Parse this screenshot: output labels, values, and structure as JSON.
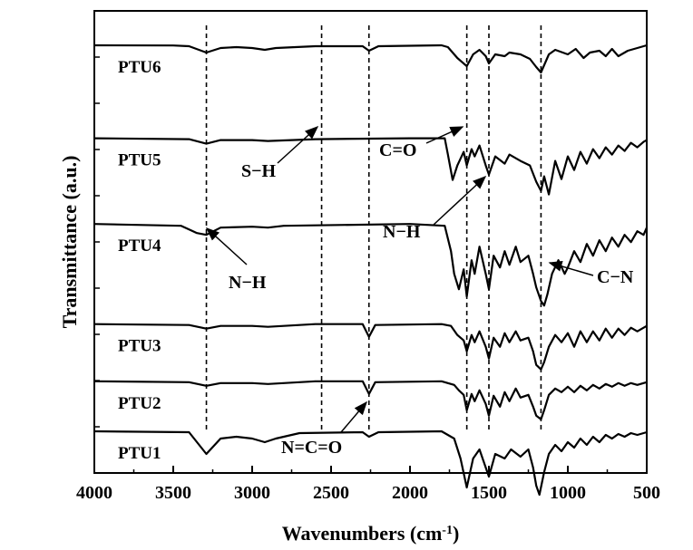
{
  "chart_data": {
    "type": "line",
    "title": "",
    "xlabel": "Wavenumbers (cm",
    "xlabel_sup": "-1",
    "xlabel_close": ")",
    "ylabel": "Transmittance (a.u.)",
    "xlim": [
      4000,
      500
    ],
    "x_reversed": true,
    "xticks": [
      4000,
      3500,
      3000,
      2500,
      2000,
      1500,
      1000,
      500
    ],
    "y_tick_labels_shown": false,
    "grid": false,
    "reference_lines_cm": [
      3290,
      2560,
      2260,
      1640,
      1500,
      1170
    ],
    "series": [
      {
        "name": "PTU6",
        "baseline": 7,
        "points": [
          [
            4000,
            0
          ],
          [
            3500,
            -0.2
          ],
          [
            3400,
            -1
          ],
          [
            3290,
            -8
          ],
          [
            3200,
            -3
          ],
          [
            3100,
            -2
          ],
          [
            3000,
            -3
          ],
          [
            2920,
            -5
          ],
          [
            2850,
            -3
          ],
          [
            2600,
            -1
          ],
          [
            2300,
            -1
          ],
          [
            2260,
            -6
          ],
          [
            2200,
            -1
          ],
          [
            1800,
            0
          ],
          [
            1760,
            -2
          ],
          [
            1700,
            -14
          ],
          [
            1640,
            -23
          ],
          [
            1600,
            -10
          ],
          [
            1560,
            -5
          ],
          [
            1520,
            -12
          ],
          [
            1500,
            -20
          ],
          [
            1460,
            -10
          ],
          [
            1400,
            -12
          ],
          [
            1370,
            -8
          ],
          [
            1300,
            -10
          ],
          [
            1240,
            -15
          ],
          [
            1200,
            -24
          ],
          [
            1170,
            -30
          ],
          [
            1120,
            -10
          ],
          [
            1080,
            -5
          ],
          [
            1000,
            -10
          ],
          [
            950,
            -4
          ],
          [
            900,
            -14
          ],
          [
            860,
            -8
          ],
          [
            800,
            -6
          ],
          [
            760,
            -12
          ],
          [
            720,
            -4
          ],
          [
            680,
            -12
          ],
          [
            620,
            -6
          ],
          [
            560,
            -3
          ],
          [
            500,
            0
          ]
        ]
      },
      {
        "name": "PTU5",
        "baseline": 5.7,
        "points": [
          [
            4000,
            0
          ],
          [
            3400,
            -1
          ],
          [
            3290,
            -6
          ],
          [
            3200,
            -2
          ],
          [
            3000,
            -2
          ],
          [
            2900,
            -3
          ],
          [
            2600,
            -1
          ],
          [
            2000,
            0
          ],
          [
            1780,
            0
          ],
          [
            1760,
            -18
          ],
          [
            1730,
            -46
          ],
          [
            1700,
            -30
          ],
          [
            1660,
            -15
          ],
          [
            1640,
            -30
          ],
          [
            1610,
            -12
          ],
          [
            1590,
            -20
          ],
          [
            1560,
            -8
          ],
          [
            1520,
            -30
          ],
          [
            1500,
            -40
          ],
          [
            1460,
            -20
          ],
          [
            1400,
            -28
          ],
          [
            1370,
            -18
          ],
          [
            1300,
            -25
          ],
          [
            1240,
            -30
          ],
          [
            1200,
            -48
          ],
          [
            1170,
            -58
          ],
          [
            1150,
            -42
          ],
          [
            1120,
            -62
          ],
          [
            1080,
            -25
          ],
          [
            1040,
            -45
          ],
          [
            1000,
            -20
          ],
          [
            960,
            -35
          ],
          [
            920,
            -15
          ],
          [
            880,
            -28
          ],
          [
            840,
            -12
          ],
          [
            800,
            -22
          ],
          [
            760,
            -10
          ],
          [
            720,
            -18
          ],
          [
            680,
            -8
          ],
          [
            640,
            -14
          ],
          [
            600,
            -5
          ],
          [
            560,
            -10
          ],
          [
            520,
            -4
          ],
          [
            500,
            -2
          ]
        ]
      },
      {
        "name": "PTU4",
        "baseline": 4.5,
        "points": [
          [
            4000,
            0
          ],
          [
            3450,
            -2
          ],
          [
            3350,
            -10
          ],
          [
            3290,
            -12
          ],
          [
            3200,
            -4
          ],
          [
            3000,
            -3
          ],
          [
            2900,
            -4
          ],
          [
            2800,
            -2
          ],
          [
            2000,
            0
          ],
          [
            1780,
            -2
          ],
          [
            1740,
            -30
          ],
          [
            1720,
            -55
          ],
          [
            1690,
            -72
          ],
          [
            1660,
            -50
          ],
          [
            1640,
            -80
          ],
          [
            1610,
            -40
          ],
          [
            1590,
            -55
          ],
          [
            1560,
            -25
          ],
          [
            1520,
            -55
          ],
          [
            1500,
            -72
          ],
          [
            1470,
            -35
          ],
          [
            1430,
            -48
          ],
          [
            1400,
            -30
          ],
          [
            1370,
            -45
          ],
          [
            1330,
            -25
          ],
          [
            1300,
            -42
          ],
          [
            1250,
            -35
          ],
          [
            1220,
            -55
          ],
          [
            1200,
            -70
          ],
          [
            1170,
            -85
          ],
          [
            1150,
            -90
          ],
          [
            1130,
            -78
          ],
          [
            1100,
            -55
          ],
          [
            1060,
            -40
          ],
          [
            1020,
            -55
          ],
          [
            1000,
            -48
          ],
          [
            960,
            -30
          ],
          [
            920,
            -42
          ],
          [
            880,
            -22
          ],
          [
            840,
            -35
          ],
          [
            800,
            -18
          ],
          [
            760,
            -30
          ],
          [
            720,
            -15
          ],
          [
            680,
            -25
          ],
          [
            640,
            -12
          ],
          [
            600,
            -20
          ],
          [
            560,
            -8
          ],
          [
            520,
            -12
          ],
          [
            500,
            -4
          ]
        ]
      },
      {
        "name": "PTU3",
        "baseline": 3.1,
        "points": [
          [
            4000,
            0
          ],
          [
            3400,
            -1
          ],
          [
            3290,
            -5
          ],
          [
            3200,
            -2
          ],
          [
            3000,
            -2
          ],
          [
            2900,
            -3
          ],
          [
            2600,
            0
          ],
          [
            2300,
            0
          ],
          [
            2260,
            -14
          ],
          [
            2220,
            -1
          ],
          [
            1800,
            0
          ],
          [
            1740,
            -2
          ],
          [
            1700,
            -12
          ],
          [
            1660,
            -18
          ],
          [
            1640,
            -30
          ],
          [
            1610,
            -12
          ],
          [
            1590,
            -20
          ],
          [
            1560,
            -8
          ],
          [
            1520,
            -25
          ],
          [
            1500,
            -38
          ],
          [
            1470,
            -15
          ],
          [
            1430,
            -25
          ],
          [
            1400,
            -10
          ],
          [
            1370,
            -20
          ],
          [
            1330,
            -8
          ],
          [
            1300,
            -18
          ],
          [
            1250,
            -15
          ],
          [
            1220,
            -30
          ],
          [
            1200,
            -45
          ],
          [
            1170,
            -50
          ],
          [
            1150,
            -42
          ],
          [
            1120,
            -25
          ],
          [
            1080,
            -12
          ],
          [
            1040,
            -20
          ],
          [
            1000,
            -10
          ],
          [
            960,
            -25
          ],
          [
            920,
            -8
          ],
          [
            880,
            -20
          ],
          [
            840,
            -8
          ],
          [
            800,
            -18
          ],
          [
            760,
            -5
          ],
          [
            720,
            -15
          ],
          [
            680,
            -5
          ],
          [
            640,
            -12
          ],
          [
            600,
            -4
          ],
          [
            560,
            -8
          ],
          [
            500,
            -2
          ]
        ]
      },
      {
        "name": "PTU2",
        "baseline": 2.3,
        "points": [
          [
            4000,
            0
          ],
          [
            3400,
            -1
          ],
          [
            3290,
            -5
          ],
          [
            3200,
            -2
          ],
          [
            3000,
            -2
          ],
          [
            2900,
            -3
          ],
          [
            2600,
            0
          ],
          [
            2300,
            0
          ],
          [
            2260,
            -14
          ],
          [
            2220,
            -1
          ],
          [
            1800,
            0
          ],
          [
            1720,
            -4
          ],
          [
            1690,
            -10
          ],
          [
            1660,
            -15
          ],
          [
            1640,
            -32
          ],
          [
            1610,
            -14
          ],
          [
            1590,
            -22
          ],
          [
            1560,
            -10
          ],
          [
            1520,
            -25
          ],
          [
            1500,
            -38
          ],
          [
            1470,
            -16
          ],
          [
            1430,
            -28
          ],
          [
            1400,
            -12
          ],
          [
            1370,
            -22
          ],
          [
            1330,
            -8
          ],
          [
            1300,
            -18
          ],
          [
            1250,
            -15
          ],
          [
            1220,
            -28
          ],
          [
            1200,
            -38
          ],
          [
            1170,
            -42
          ],
          [
            1150,
            -32
          ],
          [
            1120,
            -15
          ],
          [
            1080,
            -8
          ],
          [
            1040,
            -12
          ],
          [
            1000,
            -6
          ],
          [
            960,
            -12
          ],
          [
            920,
            -5
          ],
          [
            880,
            -10
          ],
          [
            840,
            -4
          ],
          [
            800,
            -8
          ],
          [
            760,
            -3
          ],
          [
            720,
            -6
          ],
          [
            680,
            -2
          ],
          [
            640,
            -5
          ],
          [
            600,
            -2
          ],
          [
            560,
            -4
          ],
          [
            500,
            -1
          ]
        ]
      },
      {
        "name": "PTU1",
        "baseline": 1.6,
        "points": [
          [
            4000,
            0
          ],
          [
            3400,
            -1
          ],
          [
            3290,
            -25
          ],
          [
            3200,
            -8
          ],
          [
            3100,
            -6
          ],
          [
            3000,
            -8
          ],
          [
            2920,
            -12
          ],
          [
            2850,
            -8
          ],
          [
            2700,
            -2
          ],
          [
            2300,
            -1
          ],
          [
            2260,
            -6
          ],
          [
            2200,
            -1
          ],
          [
            1800,
            0
          ],
          [
            1720,
            -8
          ],
          [
            1680,
            -30
          ],
          [
            1640,
            -62
          ],
          [
            1600,
            -30
          ],
          [
            1560,
            -20
          ],
          [
            1520,
            -40
          ],
          [
            1500,
            -50
          ],
          [
            1460,
            -25
          ],
          [
            1400,
            -30
          ],
          [
            1360,
            -20
          ],
          [
            1300,
            -28
          ],
          [
            1250,
            -20
          ],
          [
            1220,
            -40
          ],
          [
            1200,
            -60
          ],
          [
            1180,
            -70
          ],
          [
            1150,
            -45
          ],
          [
            1120,
            -25
          ],
          [
            1080,
            -15
          ],
          [
            1040,
            -22
          ],
          [
            1000,
            -12
          ],
          [
            960,
            -18
          ],
          [
            920,
            -8
          ],
          [
            880,
            -15
          ],
          [
            840,
            -6
          ],
          [
            800,
            -12
          ],
          [
            760,
            -4
          ],
          [
            720,
            -8
          ],
          [
            680,
            -3
          ],
          [
            640,
            -6
          ],
          [
            600,
            -2
          ],
          [
            560,
            -4
          ],
          [
            500,
            -1
          ]
        ]
      }
    ],
    "annotations": [
      {
        "text": "S−H",
        "target_cm": 2560
      },
      {
        "text": "C=O",
        "target_cm": 1640
      },
      {
        "text": "N−H",
        "target_cm": 1500
      },
      {
        "text": "N−H",
        "target_cm": 3290
      },
      {
        "text": "C−N",
        "target_cm": 1170
      },
      {
        "text": "N=C=O",
        "target_cm": 2260
      }
    ]
  },
  "colors": {
    "line": "#000000",
    "background": "#ffffff",
    "reference_line": "#000000"
  }
}
